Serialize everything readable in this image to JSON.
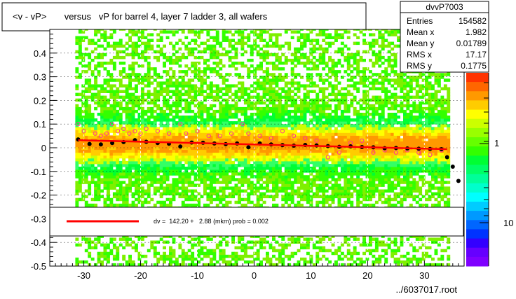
{
  "title": "<v - vP>       versus   vP for barrel 4, layer 7 ladder 3, all wafers",
  "stats": {
    "name": "dvvP7003",
    "rows": [
      {
        "label": "Entries",
        "value": "154582"
      },
      {
        "label": "Mean x",
        "value": "1.982"
      },
      {
        "label": "Mean y",
        "value": "0.01789"
      },
      {
        "label": "RMS x",
        "value": "17.17"
      },
      {
        "label": "RMS y",
        "value": "0.1775"
      }
    ]
  },
  "fit_legend": "dv =  142.20 +   2.88 (mkm) prob = 0.002",
  "footer": "../6037017.root",
  "colorbar": {
    "labels": [
      "1",
      "10"
    ]
  },
  "colors": {
    "fit_line": "#ff0000",
    "profile_points": "#000000",
    "open_markers": "#ff3399"
  },
  "chart_data": {
    "type": "heatmap",
    "xlim": [
      -36,
      37
    ],
    "ylim": [
      -0.5,
      0.5
    ],
    "x_ticks": [
      -30,
      -20,
      -10,
      0,
      10,
      20,
      30
    ],
    "x_tick_labels": [
      "-30",
      "-20",
      "-10",
      "0",
      "10",
      "20",
      "30"
    ],
    "y_ticks": [
      -0.5,
      -0.4,
      -0.3,
      -0.2,
      -0.1,
      0,
      0.1,
      0.2,
      0.3,
      0.4
    ],
    "y_tick_labels": [
      "-0.5",
      "-0.4",
      "-0.3",
      "-0.2",
      "-0.1",
      "0",
      "0.1",
      "0.2",
      "0.3",
      "0.4"
    ],
    "grid": true,
    "fit_line": {
      "x": [
        -31,
        34
      ],
      "y": [
        0.032,
        -0.006
      ]
    },
    "profile": {
      "x": [
        -31,
        -29,
        -27,
        -25,
        -23,
        -21,
        -19,
        -17,
        -15,
        -13,
        -11,
        -9,
        -7,
        -5,
        -3,
        -1,
        1,
        3,
        5,
        7,
        9,
        11,
        13,
        15,
        17,
        19,
        21,
        23,
        25,
        27,
        29,
        31,
        33,
        34,
        35,
        36
      ],
      "y": [
        0.035,
        0.016,
        0.014,
        0.02,
        0.024,
        0.032,
        0.025,
        0.02,
        0.017,
        0.005,
        0.022,
        0.021,
        0.018,
        0.015,
        0.018,
        0.002,
        0.018,
        0.014,
        0.011,
        0.009,
        0.012,
        0.01,
        0.007,
        0.004,
        0.006,
        0.003,
        0.002,
        -0.002,
        -0.001,
        -0.003,
        -0.004,
        -0.005,
        -0.006,
        -0.04,
        -0.08,
        -0.14
      ]
    },
    "open_markers": {
      "x": [
        -31,
        -30,
        -28,
        -27,
        -26,
        -25,
        -24,
        -23,
        -22,
        -21,
        -20,
        -19,
        -17,
        -15,
        -13,
        -12,
        -10,
        -8,
        -6,
        -4,
        -2,
        -1,
        1,
        3,
        5,
        7,
        9,
        11,
        13,
        15,
        17,
        19,
        21,
        23,
        25,
        27,
        29,
        31,
        33
      ],
      "y": [
        0.1,
        0.07,
        0.06,
        0.05,
        0.06,
        0.1,
        0.07,
        0.08,
        0.06,
        0.07,
        0.06,
        0.08,
        0.07,
        0.06,
        0.1,
        0.06,
        0.07,
        0.05,
        0.05,
        0.06,
        0.1,
        0.06,
        0.05,
        0.04,
        0.07,
        0.05,
        0.04,
        0.03,
        -0.04,
        -0.02,
        0.02,
        0.03,
        -0.02,
        -0.01,
        -0.02,
        -0.01,
        -0.02,
        -0.03,
        -0.01
      ]
    }
  }
}
